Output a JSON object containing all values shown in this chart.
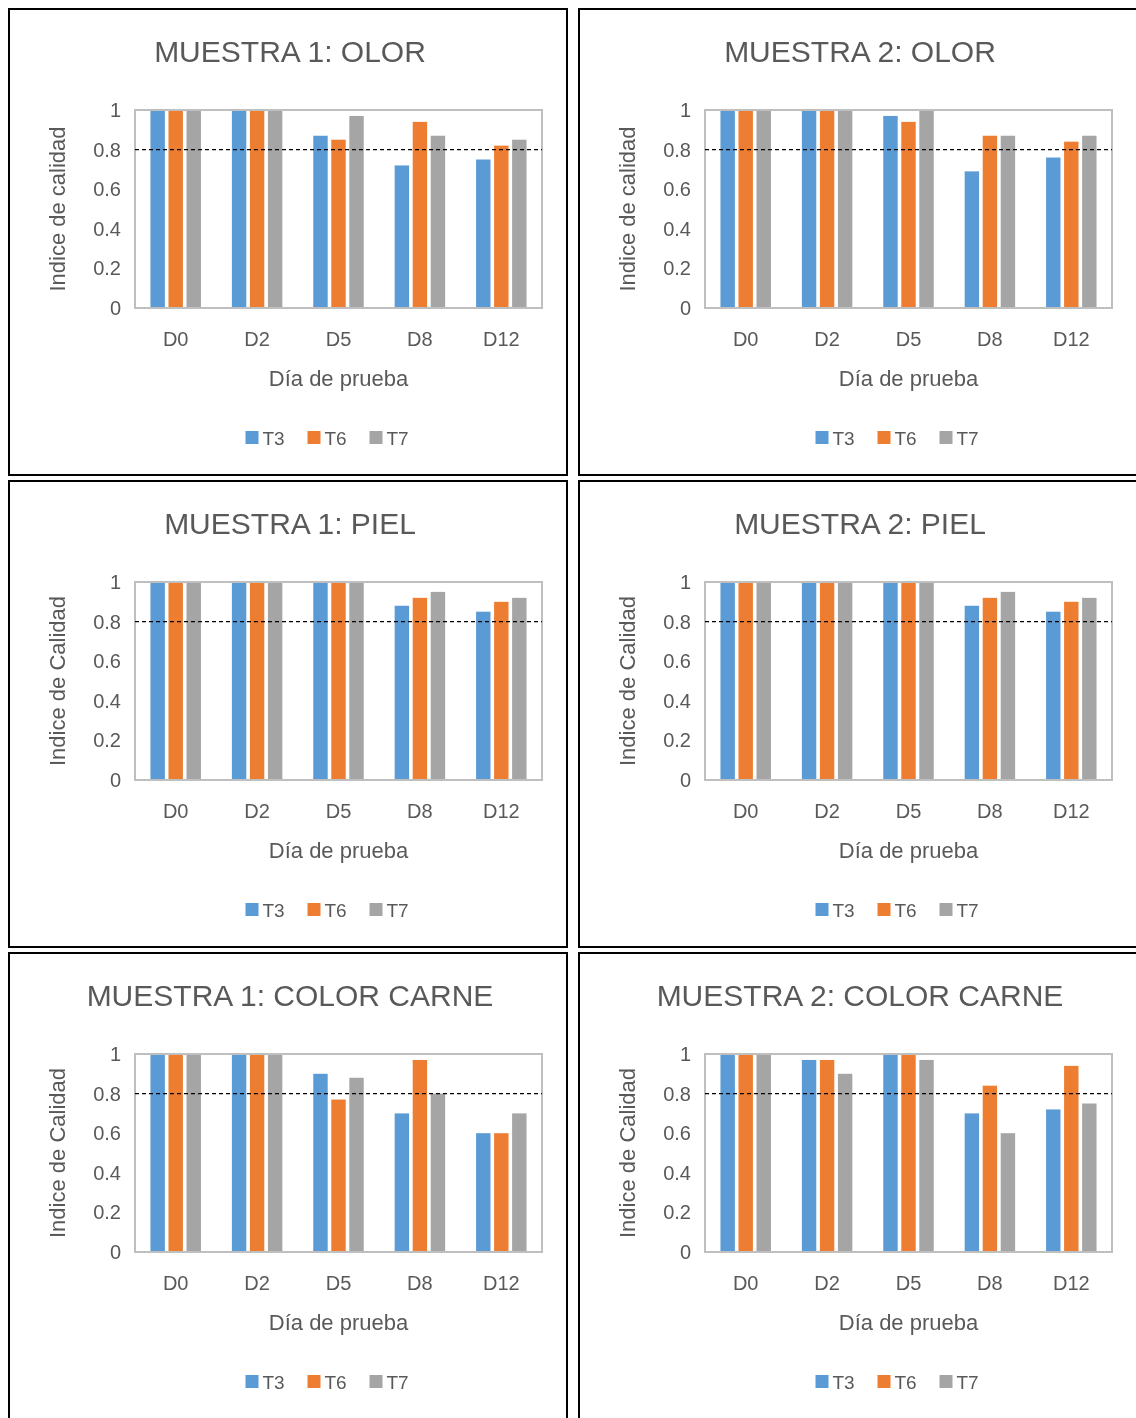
{
  "chart_data": [
    {
      "type": "bar",
      "title": "MUESTRA 1: OLOR",
      "xlabel": "Día de prueba",
      "ylabel": "Indice de calidad",
      "categories": [
        "D0",
        "D2",
        "D5",
        "D8",
        "D12"
      ],
      "ylim": [
        0,
        1
      ],
      "yticks": [
        0,
        0.2,
        0.4,
        0.6,
        0.8,
        1
      ],
      "grid": false,
      "legend": "bottom",
      "ref_lines": [
        {
          "axis": "y",
          "value": 0.8,
          "color": "#000000",
          "line_style": "dashed"
        }
      ],
      "series": [
        {
          "name": "T3",
          "color": "#5b9bd5",
          "values": [
            1,
            1,
            0.87,
            0.72,
            0.75
          ]
        },
        {
          "name": "T6",
          "color": "#ed7d31",
          "values": [
            1,
            1,
            0.85,
            0.94,
            0.82
          ]
        },
        {
          "name": "T7",
          "color": "#a5a5a5",
          "values": [
            1,
            1,
            0.97,
            0.87,
            0.85
          ]
        }
      ]
    },
    {
      "type": "bar",
      "title": "MUESTRA 2: OLOR",
      "xlabel": "Día de prueba",
      "ylabel": "Indice de calidad",
      "categories": [
        "D0",
        "D2",
        "D5",
        "D8",
        "D12"
      ],
      "ylim": [
        0,
        1
      ],
      "yticks": [
        0,
        0.2,
        0.4,
        0.6,
        0.8,
        1
      ],
      "grid": false,
      "legend": "bottom",
      "ref_lines": [
        {
          "axis": "y",
          "value": 0.8,
          "color": "#000000",
          "line_style": "dashed"
        }
      ],
      "series": [
        {
          "name": "T3",
          "color": "#5b9bd5",
          "values": [
            1,
            1,
            0.97,
            0.69,
            0.76
          ]
        },
        {
          "name": "T6",
          "color": "#ed7d31",
          "values": [
            1,
            1,
            0.94,
            0.87,
            0.84
          ]
        },
        {
          "name": "T7",
          "color": "#a5a5a5",
          "values": [
            1,
            1,
            1,
            0.87,
            0.87
          ]
        }
      ]
    },
    {
      "type": "bar",
      "title": "MUESTRA 1: PIEL",
      "xlabel": "Día de prueba",
      "ylabel": "Indice de Calidad",
      "categories": [
        "D0",
        "D2",
        "D5",
        "D8",
        "D12"
      ],
      "ylim": [
        0,
        1
      ],
      "yticks": [
        0,
        0.2,
        0.4,
        0.6,
        0.8,
        1
      ],
      "grid": false,
      "legend": "bottom",
      "ref_lines": [
        {
          "axis": "y",
          "value": 0.8,
          "color": "#000000",
          "line_style": "dashed"
        }
      ],
      "series": [
        {
          "name": "T3",
          "color": "#5b9bd5",
          "values": [
            1,
            1,
            1,
            0.88,
            0.85
          ]
        },
        {
          "name": "T6",
          "color": "#ed7d31",
          "values": [
            1,
            1,
            1,
            0.92,
            0.9
          ]
        },
        {
          "name": "T7",
          "color": "#a5a5a5",
          "values": [
            1,
            1,
            1,
            0.95,
            0.92
          ]
        }
      ]
    },
    {
      "type": "bar",
      "title": "MUESTRA 2: PIEL",
      "xlabel": "Día de prueba",
      "ylabel": "Indice de Calidad",
      "categories": [
        "D0",
        "D2",
        "D5",
        "D8",
        "D12"
      ],
      "ylim": [
        0,
        1
      ],
      "yticks": [
        0,
        0.2,
        0.4,
        0.6,
        0.8,
        1
      ],
      "grid": false,
      "legend": "bottom",
      "ref_lines": [
        {
          "axis": "y",
          "value": 0.8,
          "color": "#000000",
          "line_style": "dashed"
        }
      ],
      "series": [
        {
          "name": "T3",
          "color": "#5b9bd5",
          "values": [
            1,
            1,
            1,
            0.88,
            0.85
          ]
        },
        {
          "name": "T6",
          "color": "#ed7d31",
          "values": [
            1,
            1,
            1,
            0.92,
            0.9
          ]
        },
        {
          "name": "T7",
          "color": "#a5a5a5",
          "values": [
            1,
            1,
            1,
            0.95,
            0.92
          ]
        }
      ]
    },
    {
      "type": "bar",
      "title": "MUESTRA 1: COLOR CARNE",
      "xlabel": "Día de prueba",
      "ylabel": "Indice de Calidad",
      "categories": [
        "D0",
        "D2",
        "D5",
        "D8",
        "D12"
      ],
      "ylim": [
        0,
        1
      ],
      "yticks": [
        0,
        0.2,
        0.4,
        0.6,
        0.8,
        1
      ],
      "grid": false,
      "legend": "bottom",
      "ref_lines": [
        {
          "axis": "y",
          "value": 0.8,
          "color": "#000000",
          "line_style": "dashed"
        }
      ],
      "series": [
        {
          "name": "T3",
          "color": "#5b9bd5",
          "values": [
            1,
            1,
            0.9,
            0.7,
            0.6
          ]
        },
        {
          "name": "T6",
          "color": "#ed7d31",
          "values": [
            1,
            1,
            0.77,
            0.97,
            0.6
          ]
        },
        {
          "name": "T7",
          "color": "#a5a5a5",
          "values": [
            1,
            1,
            0.88,
            0.8,
            0.7
          ]
        }
      ]
    },
    {
      "type": "bar",
      "title": "MUESTRA 2: COLOR CARNE",
      "xlabel": "Día de prueba",
      "ylabel": "Indice de Calidad",
      "categories": [
        "D0",
        "D2",
        "D5",
        "D8",
        "D12"
      ],
      "ylim": [
        0,
        1
      ],
      "yticks": [
        0,
        0.2,
        0.4,
        0.6,
        0.8,
        1
      ],
      "grid": false,
      "legend": "bottom",
      "ref_lines": [
        {
          "axis": "y",
          "value": 0.8,
          "color": "#000000",
          "line_style": "dashed"
        }
      ],
      "series": [
        {
          "name": "T3",
          "color": "#5b9bd5",
          "values": [
            1,
            0.97,
            1,
            0.7,
            0.72
          ]
        },
        {
          "name": "T6",
          "color": "#ed7d31",
          "values": [
            1,
            0.97,
            1,
            0.84,
            0.94
          ]
        },
        {
          "name": "T7",
          "color": "#a5a5a5",
          "values": [
            1,
            0.9,
            0.97,
            0.6,
            0.75
          ]
        }
      ]
    }
  ]
}
